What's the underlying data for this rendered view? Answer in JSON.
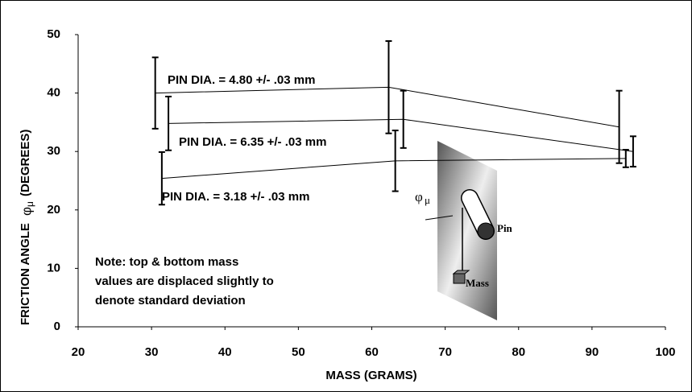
{
  "chart_data": {
    "type": "line",
    "x_label": "MASS (GRAMS)",
    "y_label": {
      "text": "FRICTION ANGLE",
      "symbol": "φ",
      "subscript": "μ",
      "unit": "(DEGREES)"
    },
    "xlim": [
      20,
      100
    ],
    "xticks": [
      20,
      30,
      40,
      50,
      60,
      70,
      80,
      90,
      100
    ],
    "ylim": [
      0,
      50
    ],
    "yticks": [
      0,
      10,
      20,
      30,
      40,
      50
    ],
    "series": [
      {
        "name": "PIN DIA. = 4.80 +/- .03 mm",
        "color": "#000000",
        "x": [
          30.5,
          62.3,
          93.7
        ],
        "values": [
          40,
          41,
          34.2
        ],
        "errors": [
          6.1,
          7.9,
          6.2
        ]
      },
      {
        "name": "PIN DIA. = 6.35 +/- .03 mm",
        "color": "#000000",
        "x": [
          32.3,
          64.3,
          95.6
        ],
        "values": [
          34.8,
          35.5,
          30
        ],
        "errors": [
          4.6,
          4.9,
          2.6
        ]
      },
      {
        "name": "PIN DIA. = 3.18 +/- .03 mm",
        "color": "#000000",
        "x": [
          31.4,
          63.2,
          94.6
        ],
        "values": [
          25.4,
          28.4,
          28.8
        ],
        "errors": [
          4.5,
          5.2,
          1.5
        ]
      }
    ],
    "note": [
      "Note: top & bottom mass",
      "values are displaced slightly to",
      "denote standard deviation"
    ],
    "inset": {
      "symbol": "φ",
      "subscript": "μ",
      "pin": "Pin",
      "mass": "Mass"
    }
  }
}
